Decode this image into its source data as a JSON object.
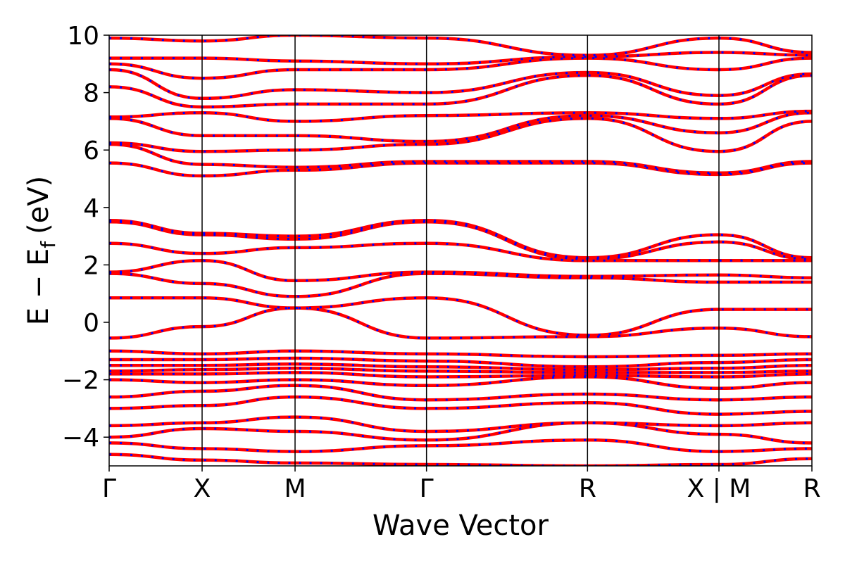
{
  "chart_data": {
    "type": "line",
    "title": "",
    "xlabel": "Wave Vector",
    "ylabel": "E − E",
    "ylabel_subscript": "f",
    "ylabel_unit": "(eV)",
    "ylim": [
      -5,
      10
    ],
    "yticks": [
      -4,
      -2,
      0,
      2,
      4,
      6,
      8,
      10
    ],
    "ytick_labels": [
      "−4",
      "−2",
      "0",
      "2",
      "4",
      "6",
      "8",
      "10"
    ],
    "k_path": [
      {
        "label": "Γ",
        "k": 0.0
      },
      {
        "label": "X",
        "k": 0.5
      },
      {
        "label": "M",
        "k": 1.0
      },
      {
        "label": "Γ",
        "k": 1.707
      },
      {
        "label": "R",
        "k": 2.573
      },
      {
        "label": "X | M",
        "k": 3.28
      },
      {
        "label": "R",
        "k": 3.78
      }
    ],
    "xlim": [
      0,
      3.78
    ],
    "grid": false,
    "series": [
      {
        "color": "#ff0000",
        "style": "solid",
        "values": [
          [
            -4.6,
            -4.8,
            -4.9,
            -4.95,
            -5.0,
            -4.95,
            -4.75
          ],
          [
            -4.2,
            -4.4,
            -4.5,
            -4.3,
            -4.1,
            -4.5,
            -4.4
          ],
          [
            -4.0,
            -3.7,
            -3.8,
            -4.1,
            -3.5,
            -3.9,
            -4.2
          ],
          [
            -3.6,
            -3.5,
            -3.3,
            -3.8,
            -3.5,
            -3.6,
            -3.5
          ],
          [
            -3.0,
            -2.9,
            -2.6,
            -3.0,
            -2.8,
            -3.2,
            -3.1
          ],
          [
            -2.6,
            -2.4,
            -2.2,
            -2.7,
            -2.5,
            -2.7,
            -2.6
          ],
          [
            -2.0,
            -2.1,
            -2.0,
            -2.2,
            -1.9,
            -2.3,
            -2.1
          ],
          [
            -1.8,
            -1.8,
            -1.75,
            -1.9,
            -1.85,
            -1.9,
            -1.8
          ],
          [
            -1.7,
            -1.65,
            -1.6,
            -1.7,
            -1.75,
            -1.75,
            -1.7
          ],
          [
            -1.5,
            -1.5,
            -1.45,
            -1.55,
            -1.65,
            -1.6,
            -1.5
          ],
          [
            -1.3,
            -1.3,
            -1.25,
            -1.35,
            -1.55,
            -1.4,
            -1.3
          ],
          [
            -1.0,
            -1.1,
            -1.0,
            -1.1,
            -1.2,
            -1.15,
            -1.1
          ],
          [
            -0.55,
            -0.15,
            0.5,
            -0.55,
            -0.5,
            -0.2,
            -0.5
          ],
          [
            0.85,
            0.85,
            0.5,
            0.85,
            -0.45,
            0.45,
            0.45
          ],
          [
            1.7,
            1.35,
            0.9,
            1.7,
            1.55,
            1.4,
            1.4
          ],
          [
            1.75,
            2.15,
            1.45,
            1.75,
            1.6,
            1.65,
            1.55
          ],
          [
            2.75,
            2.4,
            2.6,
            2.75,
            2.15,
            2.15,
            2.15
          ],
          [
            3.5,
            3.05,
            2.9,
            3.5,
            2.2,
            2.8,
            2.2
          ],
          [
            3.55,
            3.1,
            3.0,
            3.55,
            2.25,
            3.05,
            2.25
          ],
          [
            5.55,
            5.1,
            5.3,
            5.55,
            5.55,
            5.15,
            5.55
          ],
          [
            6.2,
            5.5,
            5.4,
            5.6,
            5.6,
            5.2,
            5.6
          ],
          [
            6.25,
            5.95,
            6.0,
            6.2,
            7.1,
            5.95,
            7.0
          ],
          [
            7.1,
            6.5,
            6.5,
            6.3,
            7.2,
            6.6,
            7.3
          ],
          [
            7.15,
            7.3,
            7.0,
            7.2,
            7.3,
            7.1,
            7.35
          ],
          [
            8.2,
            7.5,
            7.6,
            7.6,
            8.6,
            7.6,
            8.6
          ],
          [
            8.8,
            7.8,
            8.1,
            8.0,
            8.7,
            7.9,
            8.65
          ],
          [
            9.0,
            8.5,
            8.8,
            8.8,
            9.2,
            8.8,
            9.2
          ],
          [
            9.2,
            9.2,
            9.1,
            9.0,
            9.25,
            9.4,
            9.3
          ],
          [
            9.9,
            9.8,
            10.0,
            9.9,
            9.3,
            9.9,
            9.4
          ]
        ]
      },
      {
        "color": "#0000ff",
        "style": "dashed",
        "values": [
          [
            -4.6,
            -4.8,
            -4.9,
            -4.95,
            -5.0,
            -4.95,
            -4.75
          ],
          [
            -4.2,
            -4.4,
            -4.5,
            -4.3,
            -4.1,
            -4.5,
            -4.4
          ],
          [
            -4.0,
            -3.7,
            -3.8,
            -4.1,
            -3.5,
            -3.9,
            -4.2
          ],
          [
            -3.6,
            -3.5,
            -3.3,
            -3.8,
            -3.5,
            -3.6,
            -3.5
          ],
          [
            -3.0,
            -2.9,
            -2.6,
            -3.0,
            -2.8,
            -3.2,
            -3.1
          ],
          [
            -2.6,
            -2.4,
            -2.2,
            -2.7,
            -2.5,
            -2.7,
            -2.6
          ],
          [
            -2.0,
            -2.1,
            -2.0,
            -2.2,
            -1.9,
            -2.3,
            -2.1
          ],
          [
            -1.8,
            -1.8,
            -1.75,
            -1.9,
            -1.85,
            -1.9,
            -1.8
          ],
          [
            -1.7,
            -1.65,
            -1.6,
            -1.7,
            -1.75,
            -1.75,
            -1.7
          ],
          [
            -1.5,
            -1.5,
            -1.45,
            -1.55,
            -1.65,
            -1.6,
            -1.5
          ],
          [
            -1.3,
            -1.3,
            -1.25,
            -1.35,
            -1.55,
            -1.4,
            -1.3
          ],
          [
            -1.0,
            -1.1,
            -1.0,
            -1.1,
            -1.2,
            -1.15,
            -1.1
          ],
          [
            -0.55,
            -0.15,
            0.5,
            -0.55,
            -0.5,
            -0.2,
            -0.5
          ],
          [
            0.85,
            0.85,
            0.5,
            0.85,
            -0.45,
            0.45,
            0.45
          ],
          [
            1.7,
            1.35,
            0.9,
            1.7,
            1.55,
            1.4,
            1.4
          ],
          [
            1.75,
            2.15,
            1.45,
            1.75,
            1.6,
            1.65,
            1.55
          ],
          [
            2.75,
            2.4,
            2.6,
            2.75,
            2.15,
            2.15,
            2.15
          ],
          [
            3.5,
            3.05,
            2.9,
            3.5,
            2.2,
            2.8,
            2.2
          ],
          [
            3.55,
            3.1,
            3.0,
            3.55,
            2.25,
            3.05,
            2.25
          ],
          [
            5.55,
            5.1,
            5.3,
            5.55,
            5.55,
            5.15,
            5.55
          ],
          [
            6.2,
            5.5,
            5.4,
            5.6,
            5.6,
            5.2,
            5.6
          ],
          [
            6.25,
            5.95,
            6.0,
            6.2,
            7.1,
            5.95,
            7.0
          ],
          [
            7.1,
            6.5,
            6.5,
            6.3,
            7.2,
            6.6,
            7.3
          ],
          [
            7.15,
            7.3,
            7.0,
            7.2,
            7.3,
            7.1,
            7.35
          ],
          [
            8.2,
            7.5,
            7.6,
            7.6,
            8.6,
            7.6,
            8.6
          ],
          [
            8.8,
            7.8,
            8.1,
            8.0,
            8.7,
            7.9,
            8.65
          ],
          [
            9.0,
            8.5,
            8.8,
            8.8,
            9.2,
            8.8,
            9.2
          ],
          [
            9.2,
            9.2,
            9.1,
            9.0,
            9.25,
            9.4,
            9.3
          ],
          [
            9.9,
            9.8,
            10.0,
            9.9,
            9.3,
            9.9,
            9.4
          ]
        ]
      }
    ]
  }
}
